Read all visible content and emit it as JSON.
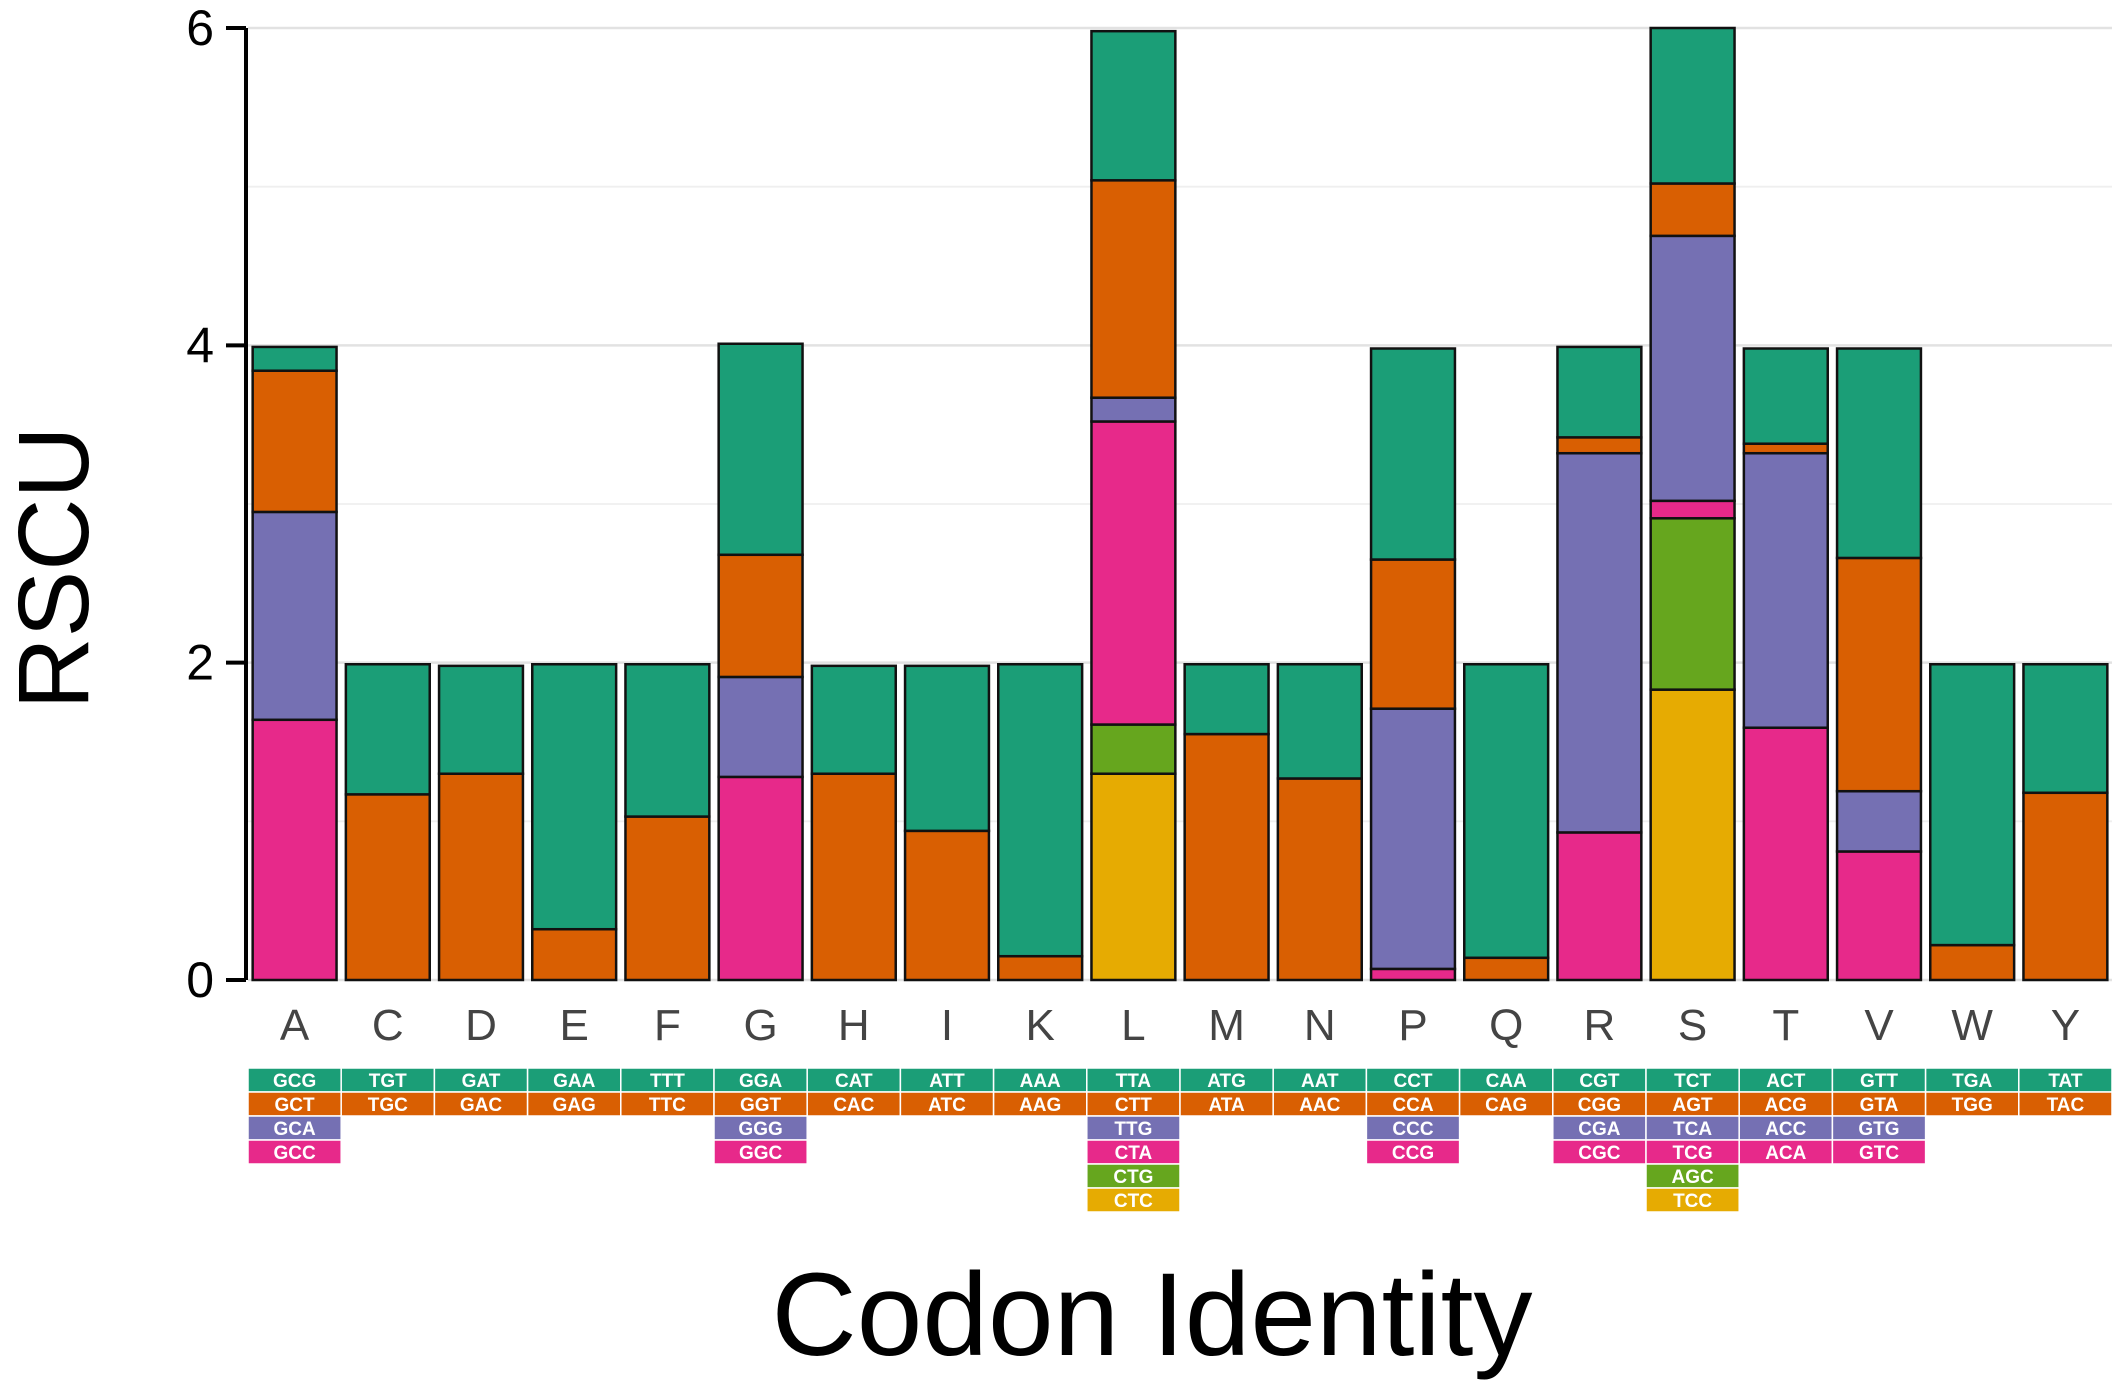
{
  "chart_data": {
    "type": "bar",
    "stacked": true,
    "title": "",
    "xlabel": "Codon Identity",
    "ylabel": "RSCU",
    "ylim": [
      0,
      6
    ],
    "yticks": [
      0,
      2,
      4,
      6
    ],
    "grid": true,
    "legend": "codon table below x-axis",
    "layer_colors": [
      "#1b9e77",
      "#d95f02",
      "#7570b3",
      "#e7298a",
      "#66a61e",
      "#e6ab02"
    ],
    "categories": [
      "A",
      "C",
      "D",
      "E",
      "F",
      "G",
      "H",
      "I",
      "K",
      "L",
      "M",
      "N",
      "P",
      "Q",
      "R",
      "S",
      "T",
      "V",
      "W",
      "Y"
    ],
    "stacks": [
      {
        "category": "A",
        "codons": [
          "GCG",
          "GCT",
          "GCA",
          "GCC"
        ],
        "values": [
          0.15,
          0.89,
          1.31,
          1.64
        ]
      },
      {
        "category": "C",
        "codons": [
          "TGT",
          "TGC"
        ],
        "values": [
          0.82,
          1.17
        ]
      },
      {
        "category": "D",
        "codons": [
          "GAT",
          "GAC"
        ],
        "values": [
          0.68,
          1.3
        ]
      },
      {
        "category": "E",
        "codons": [
          "GAA",
          "GAG"
        ],
        "values": [
          1.67,
          0.32
        ]
      },
      {
        "category": "F",
        "codons": [
          "TTT",
          "TTC"
        ],
        "values": [
          0.96,
          1.03
        ]
      },
      {
        "category": "G",
        "codons": [
          "GGA",
          "GGT",
          "GGG",
          "GGC"
        ],
        "values": [
          1.33,
          0.77,
          0.63,
          1.28
        ]
      },
      {
        "category": "H",
        "codons": [
          "CAT",
          "CAC"
        ],
        "values": [
          0.68,
          1.3
        ]
      },
      {
        "category": "I",
        "codons": [
          "ATT",
          "ATC"
        ],
        "values": [
          1.04,
          0.94
        ]
      },
      {
        "category": "K",
        "codons": [
          "AAA",
          "AAG"
        ],
        "values": [
          1.84,
          0.15
        ]
      },
      {
        "category": "L",
        "codons": [
          "TTA",
          "CTT",
          "TTG",
          "CTA",
          "CTG",
          "CTC"
        ],
        "values": [
          0.94,
          1.37,
          0.15,
          1.91,
          0.31,
          1.3
        ]
      },
      {
        "category": "M",
        "codons": [
          "ATG",
          "ATA"
        ],
        "values": [
          0.44,
          1.55
        ]
      },
      {
        "category": "N",
        "codons": [
          "AAT",
          "AAC"
        ],
        "values": [
          0.72,
          1.27
        ]
      },
      {
        "category": "P",
        "codons": [
          "CCT",
          "CCA",
          "CCC",
          "CCG"
        ],
        "values": [
          1.33,
          0.94,
          1.64,
          0.07
        ]
      },
      {
        "category": "Q",
        "codons": [
          "CAA",
          "CAG"
        ],
        "values": [
          1.85,
          0.14
        ]
      },
      {
        "category": "R",
        "codons": [
          "CGT",
          "CGG",
          "CGA",
          "CGC"
        ],
        "values": [
          0.57,
          0.1,
          2.39,
          0.93
        ]
      },
      {
        "category": "S",
        "codons": [
          "TCT",
          "AGT",
          "TCA",
          "TCG",
          "AGC",
          "TCC"
        ],
        "values": [
          0.98,
          0.33,
          1.67,
          0.11,
          1.08,
          1.83
        ]
      },
      {
        "category": "T",
        "codons": [
          "ACT",
          "ACG",
          "ACC",
          "ACA"
        ],
        "values": [
          0.6,
          0.06,
          1.73,
          1.59
        ]
      },
      {
        "category": "V",
        "codons": [
          "GTT",
          "GTA",
          "GTG",
          "GTC"
        ],
        "values": [
          1.32,
          1.47,
          0.38,
          0.81
        ]
      },
      {
        "category": "W",
        "codons": [
          "TGA",
          "TGG"
        ],
        "values": [
          1.77,
          0.22
        ]
      },
      {
        "category": "Y",
        "codons": [
          "TAT",
          "TAC"
        ],
        "values": [
          0.81,
          1.18
        ]
      }
    ]
  }
}
